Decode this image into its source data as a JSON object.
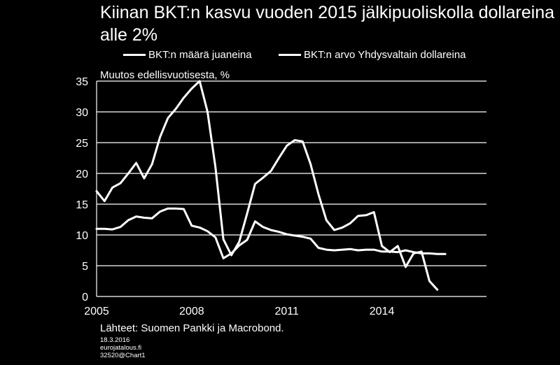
{
  "title": "Kiinan BKT:n kasvu vuoden 2015 jälkipuoliskolla dollareina alle 2%",
  "legend": [
    {
      "label": "BKT:n määrä juaneina"
    },
    {
      "label": "BKT:n arvo Yhdysvaltain dollareina"
    }
  ],
  "ylabel": "Muutos edellisvuotisesta, %",
  "source": "Lähteet: Suomen Pankki ja Macrobond.",
  "meta": {
    "date": "18.3.2016",
    "site": "eurojatalous.fi",
    "chart_id": "32520@Chart1"
  },
  "colors": {
    "background": "#000000",
    "line": "#ffffff"
  },
  "chart_data": {
    "type": "line",
    "title": "Kiinan BKT:n kasvu vuoden 2015 jälkipuoliskolla dollareina alle 2%",
    "ylabel": "Muutos edellisvuotisesta, %",
    "xlabel": "",
    "xlim": [
      2005,
      2017.3
    ],
    "ylim": [
      0,
      35
    ],
    "x_ticks": [
      2005,
      2008,
      2011,
      2014
    ],
    "x_tick_labels": [
      "2005",
      "2008",
      "2011",
      "2014"
    ],
    "y_ticks": [
      0,
      5,
      10,
      15,
      20,
      25,
      30,
      35
    ],
    "y_tick_labels": [
      "0",
      "5",
      "10",
      "15",
      "20",
      "25",
      "30",
      "35"
    ],
    "grid": "horizontal",
    "legend_position": "top",
    "series": [
      {
        "name": "BKT:n määrä juaneina",
        "x": [
          2005,
          2005.25,
          2005.5,
          2005.75,
          2006,
          2006.25,
          2006.5,
          2006.75,
          2007,
          2007.25,
          2007.5,
          2007.75,
          2008,
          2008.25,
          2008.5,
          2008.75,
          2009,
          2009.25,
          2009.5,
          2009.75,
          2010,
          2010.25,
          2010.5,
          2010.75,
          2011,
          2011.25,
          2011.5,
          2011.75,
          2012,
          2012.25,
          2012.5,
          2012.75,
          2013,
          2013.25,
          2013.5,
          2013.75,
          2014,
          2014.25,
          2014.5,
          2014.75,
          2015,
          2015.25,
          2015.5,
          2015.75,
          2016
        ],
        "values": [
          11.0,
          11.0,
          10.9,
          11.3,
          12.4,
          13.0,
          12.8,
          12.7,
          13.8,
          14.3,
          14.3,
          14.2,
          11.5,
          11.2,
          10.6,
          9.6,
          6.2,
          7.0,
          8.3,
          9.2,
          12.2,
          11.3,
          10.8,
          10.5,
          10.1,
          9.9,
          9.7,
          9.4,
          7.9,
          7.6,
          7.5,
          7.6,
          7.7,
          7.5,
          7.6,
          7.6,
          7.3,
          7.3,
          7.2,
          7.5,
          7.2,
          7.0,
          7.0,
          6.9,
          6.9
        ]
      },
      {
        "name": "BKT:n arvo Yhdysvaltain dollareina",
        "x": [
          2005,
          2005.25,
          2005.5,
          2005.75,
          2006,
          2006.25,
          2006.5,
          2006.75,
          2007,
          2007.25,
          2007.5,
          2007.75,
          2008,
          2008.25,
          2008.5,
          2008.75,
          2009,
          2009.25,
          2009.5,
          2009.75,
          2010,
          2010.25,
          2010.5,
          2010.75,
          2011,
          2011.25,
          2011.5,
          2011.75,
          2012,
          2012.25,
          2012.5,
          2012.75,
          2013,
          2013.25,
          2013.5,
          2013.75,
          2014,
          2014.25,
          2014.5,
          2014.75,
          2015,
          2015.25,
          2015.5,
          2015.75,
          2016
        ],
        "values": [
          17.1,
          15.5,
          17.7,
          18.4,
          20.0,
          21.7,
          19.2,
          21.5,
          25.9,
          29.0,
          30.5,
          32.3,
          33.8,
          35.0,
          30.0,
          21.0,
          9.3,
          6.7,
          8.9,
          13.5,
          18.3,
          19.3,
          20.4,
          22.5,
          24.5,
          25.4,
          25.2,
          21.5,
          16.6,
          12.4,
          10.8,
          11.2,
          11.9,
          13.1,
          13.2,
          13.7,
          8.2,
          7.2,
          8.2,
          4.8,
          7.0,
          7.3,
          2.5,
          1.1,
          null
        ]
      }
    ]
  }
}
